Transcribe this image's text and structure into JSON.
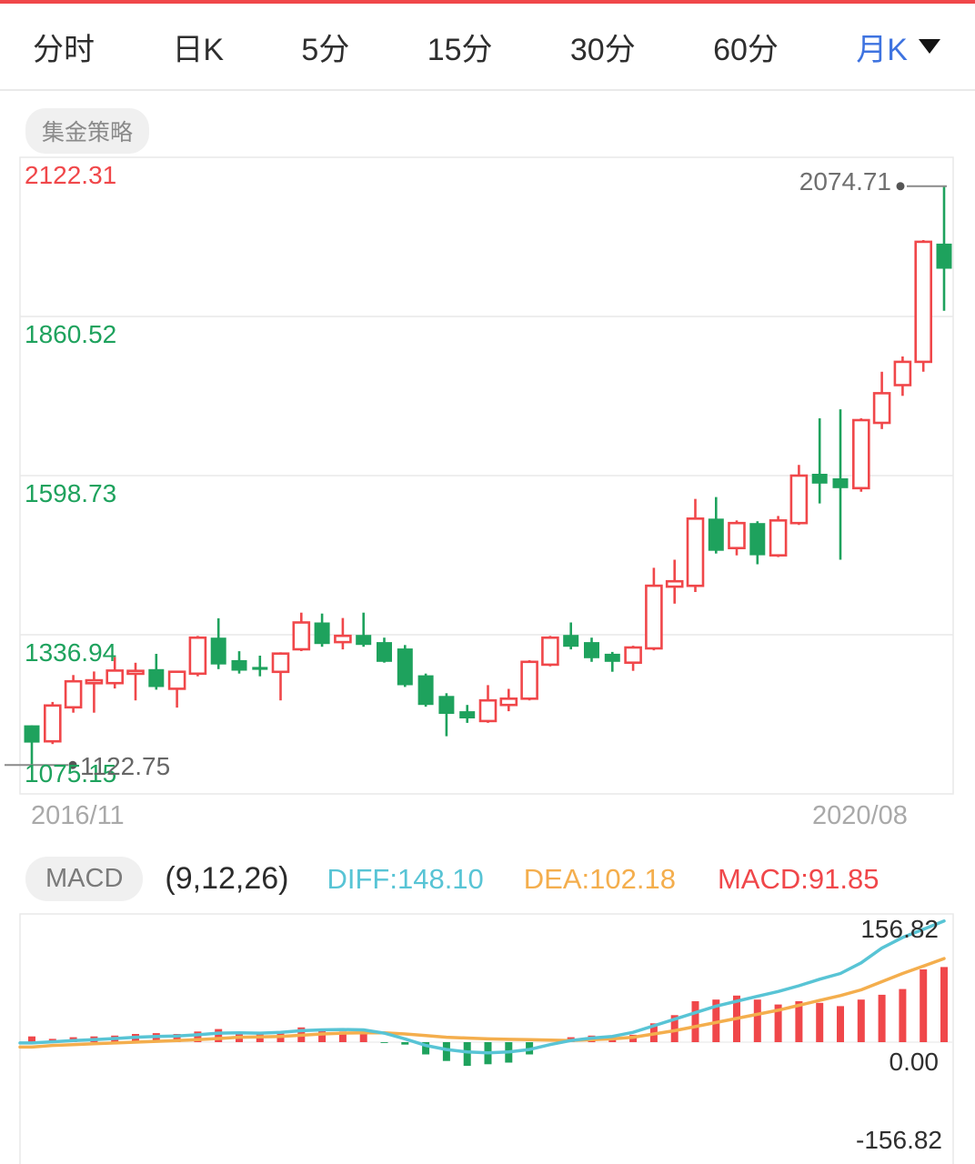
{
  "top_bar": {
    "accent_color": "#f0474a"
  },
  "tabs": {
    "items": [
      {
        "label": "分时",
        "selected": false
      },
      {
        "label": "日K",
        "selected": false
      },
      {
        "label": "5分",
        "selected": false
      },
      {
        "label": "15分",
        "selected": false
      },
      {
        "label": "30分",
        "selected": false
      },
      {
        "label": "60分",
        "selected": false
      },
      {
        "label": "月K",
        "selected": true,
        "has_dropdown": true
      }
    ],
    "selected_color": "#3e73e0"
  },
  "strategy_badge": {
    "label": "集金策略"
  },
  "chart_data": {
    "type": "candlestick",
    "period": "月K",
    "colors": {
      "up": "#f0474a",
      "down": "#1ea25d",
      "grid": "#e9e9e9",
      "marker_line": "#8a8a8a",
      "marker_dot": "#555555",
      "diff": "#58c4d5",
      "dea": "#f4ae4d"
    },
    "y_axis": {
      "max": 2122.31,
      "min": 1075.15,
      "gridline_values": [
        2122.31,
        1860.52,
        1598.73,
        1336.94,
        1075.15
      ],
      "labels": [
        {
          "text": "2122.31",
          "color": "#f0474a"
        },
        {
          "text": "1860.52",
          "color": "#1ea25d"
        },
        {
          "text": "1598.73",
          "color": "#1ea25d"
        },
        {
          "text": "1336.94",
          "color": "#1ea25d"
        },
        {
          "text": "1075.15",
          "color": "#1ea25d"
        }
      ]
    },
    "x_axis": {
      "labels": [
        "2016/11",
        "2020/08"
      ]
    },
    "markers": {
      "highest": {
        "label": "2074.71",
        "value": 2074.71
      },
      "lowest": {
        "label": "1122.75",
        "value": 1122.75
      }
    },
    "candles_ohlc": [
      [
        1188.0,
        1188.0,
        1122.75,
        1159.6
      ],
      [
        1161.6,
        1226.4,
        1157.2,
        1220.5
      ],
      [
        1217.5,
        1270.6,
        1208.7,
        1260.3
      ],
      [
        1259.0,
        1276.5,
        1208.7,
        1262.0
      ],
      [
        1257.4,
        1300.1,
        1248.5,
        1278.0
      ],
      [
        1275.0,
        1290.8,
        1228.9,
        1277.5
      ],
      [
        1280.4,
        1305.5,
        1246.6,
        1251.0
      ],
      [
        1248.0,
        1277.0,
        1217.1,
        1276.0
      ],
      [
        1273.0,
        1335.0,
        1268.6,
        1332.2
      ],
      [
        1332.2,
        1364.0,
        1280.4,
        1288.1
      ],
      [
        1295.2,
        1309.9,
        1273.0,
        1277.8
      ],
      [
        1284.0,
        1302.5,
        1268.6,
        1281.0
      ],
      [
        1276.0,
        1308.0,
        1228.9,
        1306.0
      ],
      [
        1312.9,
        1373.3,
        1310.0,
        1357.1
      ],
      [
        1357.1,
        1371.8,
        1317.2,
        1321.6
      ],
      [
        1324.8,
        1364.5,
        1312.9,
        1335.1
      ],
      [
        1336.6,
        1373.3,
        1317.2,
        1320.1
      ],
      [
        1324.8,
        1332.2,
        1291.0,
        1292.4
      ],
      [
        1314.4,
        1320.0,
        1251.0,
        1254.0
      ],
      [
        1270.2,
        1273.0,
        1218.6,
        1221.5
      ],
      [
        1236.3,
        1240.7,
        1170.0,
        1206.8
      ],
      [
        1211.2,
        1221.5,
        1192.0,
        1199.4
      ],
      [
        1195.0,
        1254.0,
        1192.0,
        1228.9
      ],
      [
        1221.5,
        1248.0,
        1211.2,
        1231.8
      ],
      [
        1231.8,
        1295.0,
        1228.9,
        1292.4
      ],
      [
        1287.8,
        1335.0,
        1284.9,
        1332.2
      ],
      [
        1336.6,
        1357.1,
        1312.9,
        1317.2
      ],
      [
        1324.8,
        1332.2,
        1292.4,
        1298.3
      ],
      [
        1305.7,
        1308.6,
        1276.0,
        1292.4
      ],
      [
        1291.0,
        1318.9,
        1277.5,
        1316.0
      ],
      [
        1314.4,
        1447.0,
        1311.4,
        1417.5
      ],
      [
        1416.0,
        1460.3,
        1388.1,
        1424.9
      ],
      [
        1417.5,
        1560.4,
        1407.2,
        1528.0
      ],
      [
        1528.0,
        1563.4,
        1470.5,
        1475.0
      ],
      [
        1479.4,
        1525.0,
        1467.6,
        1520.6
      ],
      [
        1520.6,
        1523.6,
        1452.9,
        1467.6
      ],
      [
        1467.6,
        1532.3,
        1464.7,
        1525.0
      ],
      [
        1520.6,
        1616.4,
        1517.7,
        1598.7
      ],
      [
        1601.7,
        1693.0,
        1553.0,
        1585.5
      ],
      [
        1594.3,
        1707.8,
        1460.3,
        1578.1
      ],
      [
        1578.1,
        1693.0,
        1572.2,
        1690.0
      ],
      [
        1685.6,
        1769.6,
        1675.3,
        1734.3
      ],
      [
        1747.5,
        1794.7,
        1729.9,
        1785.8
      ],
      [
        1785.8,
        1986.2,
        1769.6,
        1983.3
      ],
      [
        1980.4,
        2074.71,
        1869.9,
        1939.1
      ]
    ],
    "macd": {
      "badge": "MACD",
      "params": "(9,12,26)",
      "diff_label": "DIFF:148.10",
      "dea_label": "DEA:102.18",
      "macd_label": "MACD:91.85",
      "last_values": {
        "diff": 148.1,
        "dea": 102.18,
        "macd": 91.85
      },
      "axis_labels": [
        "156.82",
        "0.00",
        "-156.82"
      ],
      "scale_max": 156.82,
      "hist": [
        7,
        4,
        6,
        7,
        8,
        10,
        11,
        10,
        13,
        16,
        12,
        11,
        13,
        18,
        15,
        13,
        11,
        -1,
        -3,
        -15,
        -23,
        -29,
        -27,
        -25,
        -15,
        0,
        6,
        8,
        7,
        9,
        23,
        33,
        50,
        52,
        57,
        52,
        46,
        50,
        48,
        44,
        52,
        58,
        65,
        89,
        91.85
      ],
      "diff": [
        -1,
        0.5,
        2,
        3,
        4.5,
        6,
        7,
        7.5,
        9,
        11,
        11.5,
        11,
        12,
        14,
        15,
        15.5,
        15,
        11,
        4,
        -4,
        -9,
        -12,
        -13,
        -12,
        -9,
        -3,
        2,
        5,
        7,
        12,
        20,
        28,
        36,
        44,
        50,
        56,
        62,
        69,
        77,
        84,
        97,
        115,
        128,
        138,
        148.1
      ],
      "dea": [
        -6,
        -4,
        -3,
        -2,
        -1,
        0,
        1,
        2,
        3,
        4.5,
        6,
        6.5,
        7,
        8.5,
        10,
        11,
        11.5,
        11.5,
        10,
        8,
        6,
        5,
        4,
        3.5,
        3,
        2.5,
        2,
        3,
        4,
        6,
        10,
        14,
        19,
        24,
        29,
        34,
        39,
        45,
        51,
        57,
        64,
        74,
        84,
        93,
        102.18
      ]
    }
  }
}
